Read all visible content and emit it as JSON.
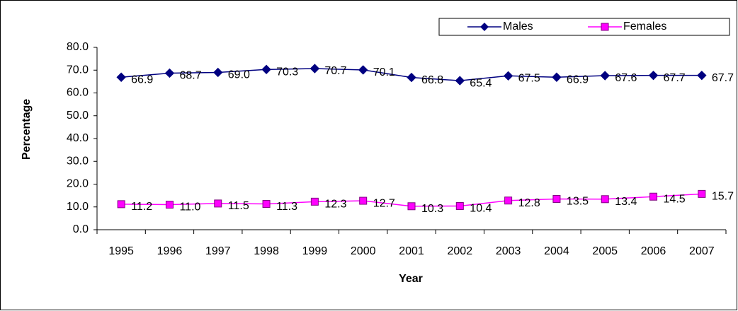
{
  "chart_data": {
    "type": "line",
    "x_label": "Year",
    "y_label": "Percentage",
    "categories": [
      "1995",
      "1996",
      "1997",
      "1998",
      "1999",
      "2000",
      "2001",
      "2002",
      "2003",
      "2004",
      "2005",
      "2006",
      "2007"
    ],
    "series": [
      {
        "name": "Males",
        "color": "#000080",
        "marker": "diamond",
        "values": [
          66.9,
          68.7,
          69.0,
          70.3,
          70.7,
          70.1,
          66.8,
          65.4,
          67.5,
          66.9,
          67.6,
          67.7,
          67.7
        ],
        "value_labels": [
          "66.9",
          "68.7",
          "69.0",
          "70.3",
          "70.7",
          "70.1",
          "66.8",
          "65.4",
          "67.5",
          "66.9",
          "67.6",
          "67.7",
          "67.7"
        ]
      },
      {
        "name": "Females",
        "color": "#FF00FF",
        "marker": "square",
        "values": [
          11.2,
          11.0,
          11.5,
          11.3,
          12.3,
          12.7,
          10.3,
          10.4,
          12.8,
          13.5,
          13.4,
          14.5,
          15.7
        ],
        "value_labels": [
          "11.2",
          "11.0",
          "11.5",
          "11.3",
          "12.3",
          "12.7",
          "10.3",
          "10.4",
          "12.8",
          "13.5",
          "13.4",
          "14.5",
          "15.7"
        ]
      }
    ],
    "ylim": [
      0,
      80
    ],
    "yticks": [
      {
        "value": 0,
        "label": "0.0"
      },
      {
        "value": 10,
        "label": "10.0"
      },
      {
        "value": 20,
        "label": "20.0"
      },
      {
        "value": 30,
        "label": "30.0"
      },
      {
        "value": 40,
        "label": "40.0"
      },
      {
        "value": 50,
        "label": "50.0"
      },
      {
        "value": 60,
        "label": "60.0"
      },
      {
        "value": 70,
        "label": "70.0"
      },
      {
        "value": 80,
        "label": "80.0"
      }
    ],
    "legend": "top-right"
  }
}
